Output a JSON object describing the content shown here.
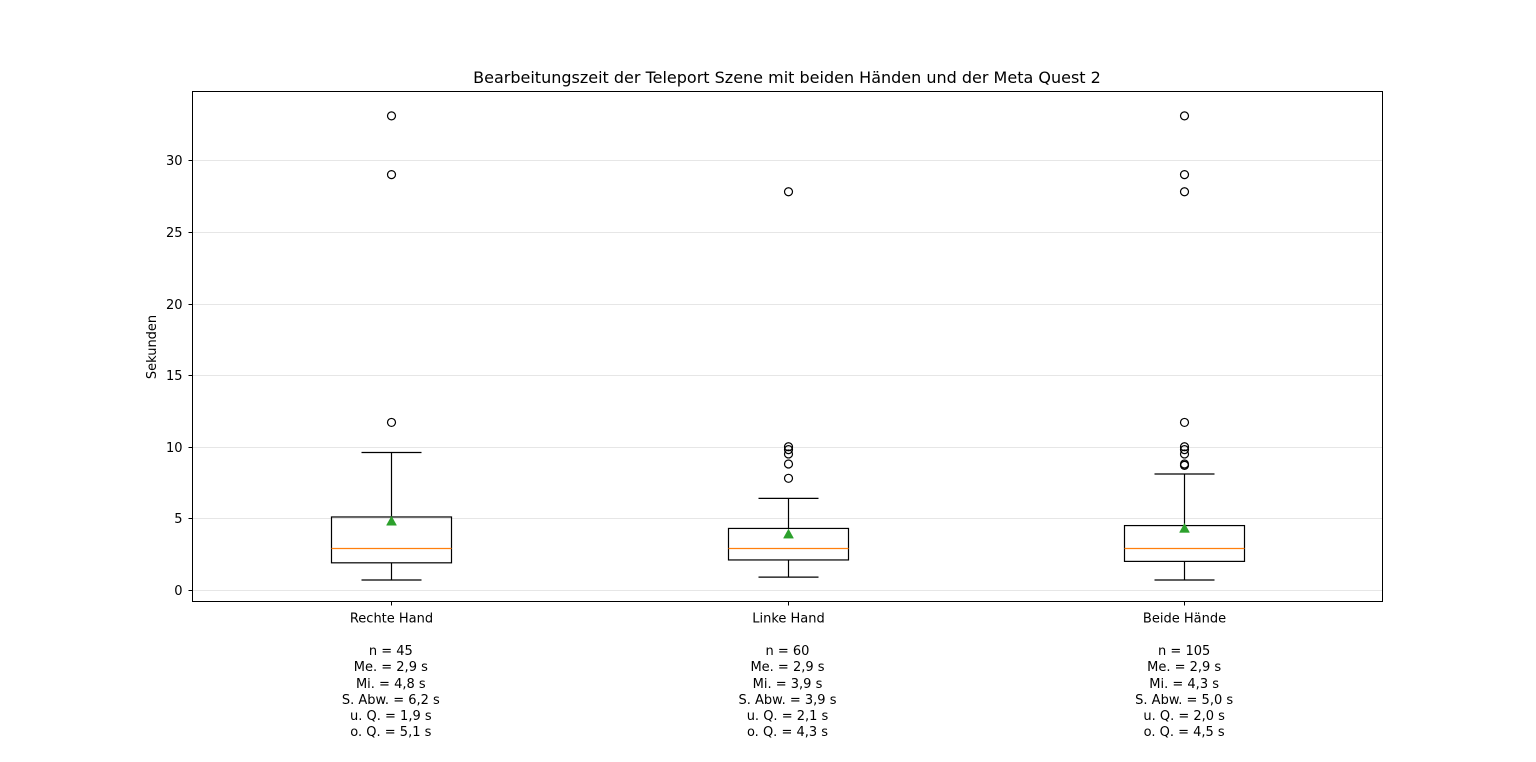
{
  "chart_data": {
    "type": "box",
    "title": "Bearbeitungszeit der Teleport Szene mit beiden Händen und der Meta Quest 2",
    "xlabel": "",
    "ylabel": "Sekunden",
    "ylim": [
      -0.8,
      34.8
    ],
    "yticks": [
      0,
      5,
      10,
      15,
      20,
      25,
      30
    ],
    "grid": "horizontal",
    "colors": {
      "median": "#ff7f0e",
      "mean": "#2ca02c",
      "box": "#000000",
      "grid": "#e6e6e6"
    },
    "categories": [
      "Rechte Hand",
      "Linke Hand",
      "Beide Hände"
    ],
    "boxes": [
      {
        "label": "Rechte Hand",
        "whisker_low": 0.7,
        "q1": 1.9,
        "median": 2.9,
        "q3": 5.1,
        "whisker_high": 9.6,
        "mean": 4.8,
        "outliers": [
          11.7,
          29.0,
          33.1
        ]
      },
      {
        "label": "Linke Hand",
        "whisker_low": 0.9,
        "q1": 2.1,
        "median": 2.9,
        "q3": 4.3,
        "whisker_high": 6.4,
        "mean": 3.9,
        "outliers": [
          7.8,
          8.8,
          9.5,
          9.8,
          10.0,
          27.8
        ]
      },
      {
        "label": "Beide Hände",
        "whisker_low": 0.7,
        "q1": 2.0,
        "median": 2.9,
        "q3": 4.5,
        "whisker_high": 8.1,
        "mean": 4.3,
        "outliers": [
          8.7,
          8.8,
          9.5,
          9.8,
          10.0,
          11.7,
          27.8,
          29.0,
          33.1
        ]
      }
    ]
  },
  "stats": [
    [
      "n = 45",
      "Me. = 2,9 s",
      "Mi. = 4,8 s",
      "S. Abw. = 6,2 s",
      "u. Q. = 1,9 s",
      "o. Q. = 5,1 s"
    ],
    [
      "n = 60",
      "Me. = 2,9 s",
      "Mi. = 3,9 s",
      "S. Abw. = 3,9 s",
      "u. Q. = 2,1 s",
      "o. Q. = 4,3 s"
    ],
    [
      "n = 105",
      "Me. = 2,9 s",
      "Mi. = 4,3 s",
      "S. Abw. = 5,0 s",
      "u. Q. = 2,0 s",
      "o. Q. = 4,5 s"
    ]
  ]
}
